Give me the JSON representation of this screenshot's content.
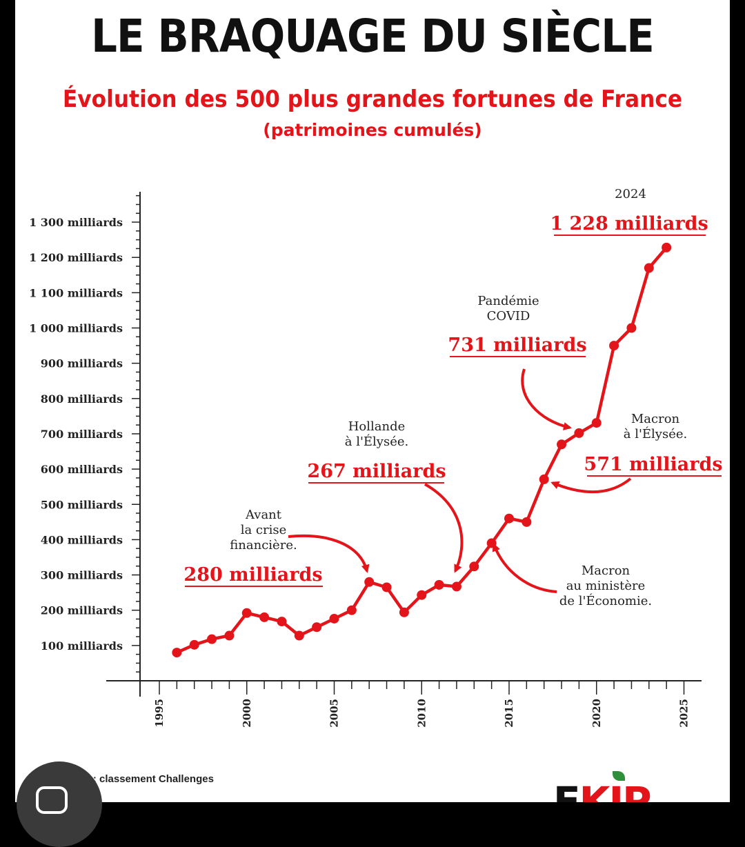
{
  "chart_data": {
    "type": "line",
    "title": "LE BRAQUAGE DU SIÈCLE",
    "subtitle": "Évolution des 500 plus grandes fortunes de France",
    "subtitle2": "(patrimoines cumulés)",
    "x": [
      1996,
      1997,
      1998,
      1999,
      2000,
      2001,
      2002,
      2003,
      2004,
      2005,
      2006,
      2007,
      2008,
      2009,
      2010,
      2011,
      2012,
      2013,
      2014,
      2015,
      2016,
      2017,
      2018,
      2019,
      2020,
      2021,
      2022,
      2023,
      2024
    ],
    "values": [
      80,
      102,
      118,
      128,
      192,
      180,
      168,
      128,
      152,
      176,
      200,
      280,
      265,
      194,
      243,
      272,
      267,
      324,
      390,
      460,
      450,
      571,
      670,
      702,
      731,
      950,
      1000,
      1170,
      1228
    ],
    "xlim": [
      1994,
      2025
    ],
    "xticks": [
      1995,
      2000,
      2005,
      2010,
      2015,
      2020,
      2025
    ],
    "ylim": [
      0,
      1380
    ],
    "yticks": [
      {
        "value": 100,
        "label": "100 milliards"
      },
      {
        "value": 200,
        "label": "200 milliards"
      },
      {
        "value": 300,
        "label": "300 milliards"
      },
      {
        "value": 400,
        "label": "400 milliards"
      },
      {
        "value": 500,
        "label": "500 milliards"
      },
      {
        "value": 600,
        "label": "600 milliards"
      },
      {
        "value": 700,
        "label": "700 milliards"
      },
      {
        "value": 800,
        "label": "800 milliards"
      },
      {
        "value": 900,
        "label": "900 milliards"
      },
      {
        "value": 1000,
        "label": "1 000 milliards"
      },
      {
        "value": 1100,
        "label": "1 100 milliards"
      },
      {
        "value": 1200,
        "label": "1 200 milliards"
      },
      {
        "value": 1300,
        "label": "1 300 milliards"
      }
    ],
    "annotations": [
      {
        "id": "crise",
        "lines": [
          "Avant",
          "la crise",
          "financière."
        ],
        "value_label": "280 milliards"
      },
      {
        "id": "hollande",
        "lines": [
          "Hollande",
          "à l'Élysée."
        ],
        "value_label": "267 milliards"
      },
      {
        "id": "covid",
        "lines": [
          "Pandémie",
          "COVID"
        ],
        "value_label": "731 milliards"
      },
      {
        "id": "macron-elysee",
        "lines": [
          "Macron",
          "à l'Élysée."
        ],
        "value_label": "571 milliards"
      },
      {
        "id": "macron-eco",
        "lines": [
          "Macron",
          "au ministère",
          "de l'Économie."
        ],
        "value_label": ""
      },
      {
        "id": "y2024",
        "lines": [
          "2024"
        ],
        "value_label": "1 228 milliards"
      }
    ],
    "colors": {
      "line": "#e3151a",
      "axis": "#222222",
      "accent": "#e3151a"
    }
  },
  "footer": {
    "source": "Source: classement Challenges",
    "logo_prefix": "F",
    "logo_rest": "KIP"
  }
}
